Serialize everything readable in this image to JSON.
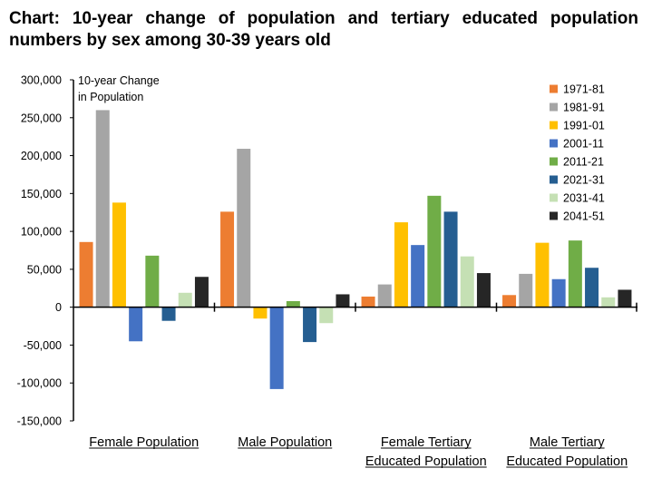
{
  "title": "Chart: 10-year change of population and tertiary educated population numbers by sex among 30-39 years old",
  "chart_data": {
    "type": "bar",
    "title": "Chart: 10-year change of population and tertiary educated population numbers by sex among 30-39 years old",
    "ylabel_lines": [
      "10-year Change",
      "in Population"
    ],
    "xlabel": "",
    "ylim": [
      -150000,
      300000
    ],
    "yticks": [
      300000,
      250000,
      200000,
      150000,
      100000,
      50000,
      0,
      -50000,
      -100000,
      -150000
    ],
    "ytick_labels": [
      "300,000",
      "250,000",
      "200,000",
      "150,000",
      "100,000",
      "50,000",
      "0",
      "-50,000",
      "-100,000",
      "-150,000"
    ],
    "categories": [
      [
        "Female Population"
      ],
      [
        "Male Population"
      ],
      [
        "Female Tertiary",
        "Educated Population"
      ],
      [
        "Male Tertiary",
        "Educated Population"
      ]
    ],
    "legend_position": "top-right",
    "grid": false,
    "series": [
      {
        "name": "1971-81",
        "color": "#ED7D31",
        "values": [
          86000,
          126000,
          14000,
          16000
        ]
      },
      {
        "name": "1981-91",
        "color": "#A5A5A5",
        "values": [
          260000,
          209000,
          30000,
          44000
        ]
      },
      {
        "name": "1991-01",
        "color": "#FFC000",
        "values": [
          138000,
          -15000,
          112000,
          85000
        ]
      },
      {
        "name": "2001-11",
        "color": "#4472C4",
        "values": [
          -45000,
          -108000,
          82000,
          37000
        ]
      },
      {
        "name": "2011-21",
        "color": "#70AD47",
        "values": [
          68000,
          8000,
          147000,
          88000
        ]
      },
      {
        "name": "2021-31",
        "color": "#255E91",
        "values": [
          -18000,
          -46000,
          126000,
          52000
        ]
      },
      {
        "name": "2031-41",
        "color": "#C5E0B4",
        "values": [
          19000,
          -21000,
          67000,
          13000
        ]
      },
      {
        "name": "2041-51",
        "color": "#262626",
        "values": [
          40000,
          17000,
          45000,
          23000
        ]
      }
    ]
  }
}
